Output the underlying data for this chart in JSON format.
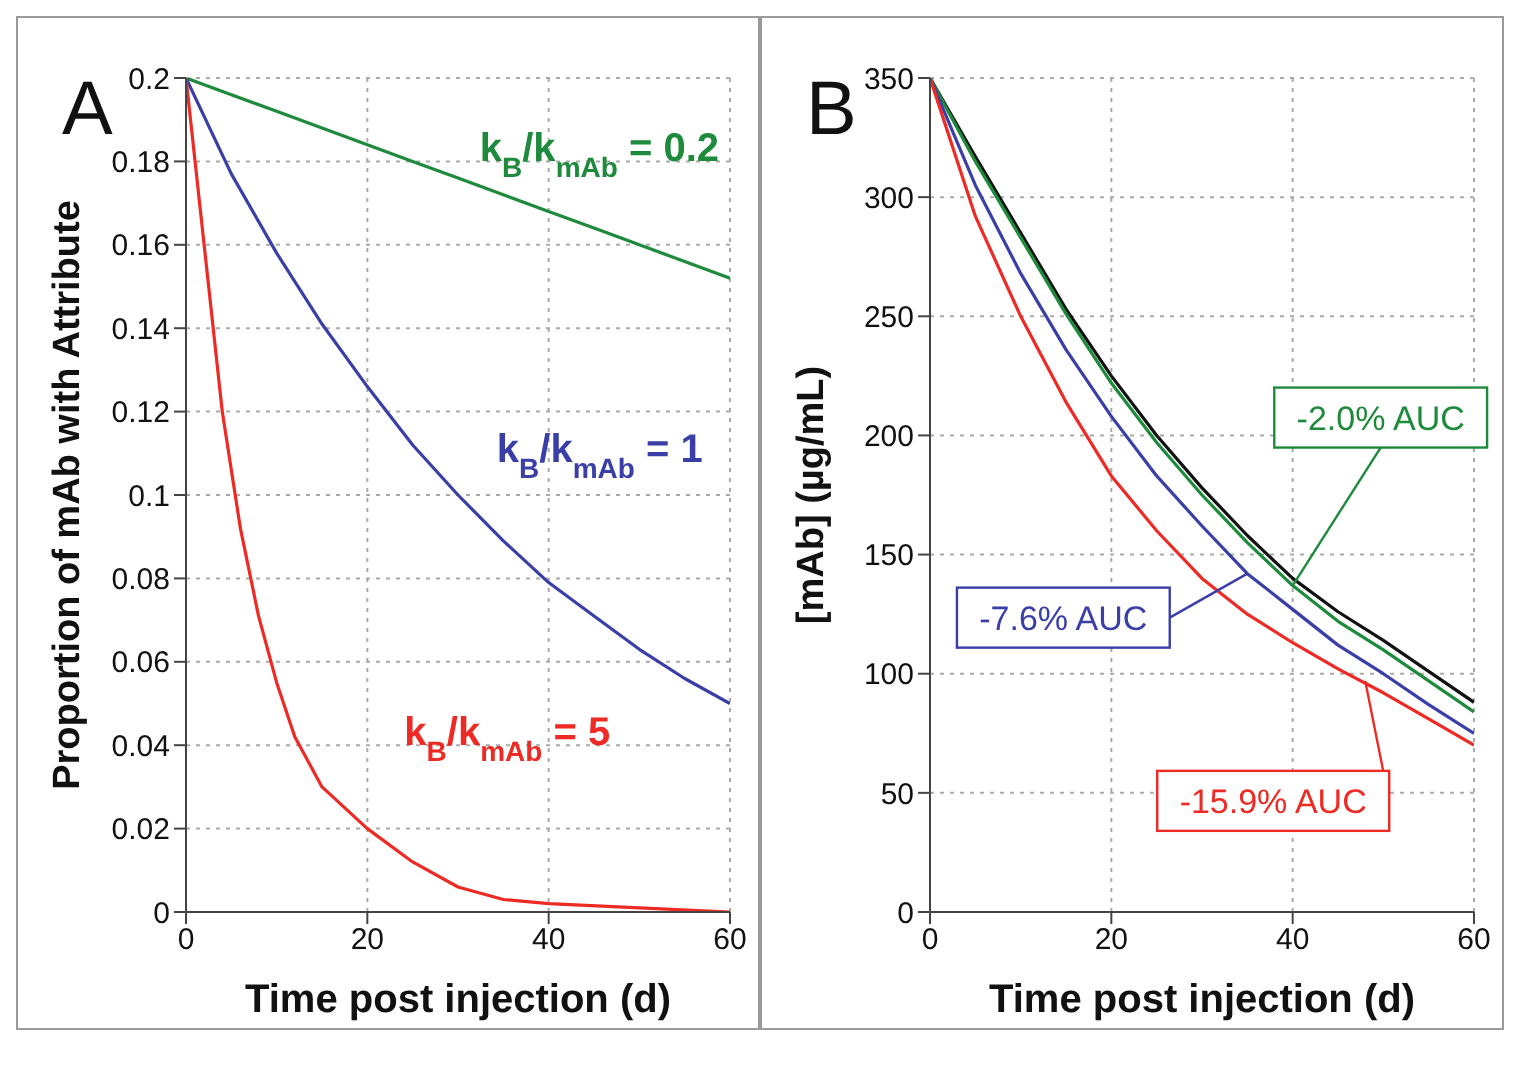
{
  "chart_data": [
    {
      "type": "line",
      "title": "A",
      "xlabel": "Time post injection (d)",
      "ylabel": "Proportion of mAb with Attribute",
      "x": [
        0,
        5,
        10,
        15,
        20,
        25,
        30,
        35,
        40,
        45,
        50,
        55,
        60
      ],
      "xlim": [
        0,
        60
      ],
      "xticks": [
        0,
        20,
        40,
        60
      ],
      "ylim": [
        0,
        0.2
      ],
      "yticks": [
        0,
        0.02,
        0.04,
        0.06,
        0.08,
        0.1,
        0.12,
        0.14,
        0.16,
        0.18,
        0.2
      ],
      "grid": true,
      "marker": "none",
      "line_style": "solid",
      "series": [
        {
          "name": "k$_{B}$/k$_{mAb}$ = 0.2",
          "color": "#1e8a3c",
          "values": [
            0.2,
            0.196,
            0.192,
            0.188,
            0.184,
            0.18,
            0.176,
            0.172,
            0.168,
            0.164,
            0.16,
            0.156,
            0.152
          ]
        },
        {
          "name": "k$_{B}$/k$_{mAb}$ = 1",
          "color": "#3a3fa8",
          "values": [
            0.2,
            0.177,
            0.158,
            0.141,
            0.126,
            0.112,
            0.1,
            0.089,
            0.079,
            0.071,
            0.063,
            0.056,
            0.05
          ]
        },
        {
          "name": "k$_{B}$/k$_{mAb}$ = 5",
          "color": "#ee2a24",
          "x": [
            0,
            2,
            4,
            6,
            8,
            10,
            12,
            15,
            20,
            25,
            30,
            35,
            40,
            50,
            60
          ],
          "values": [
            0.2,
            0.16,
            0.12,
            0.092,
            0.071,
            0.055,
            0.042,
            0.03,
            0.02,
            0.012,
            0.006,
            0.003,
            0.002,
            0.001,
            0
          ]
        }
      ]
    },
    {
      "type": "line",
      "title": "B",
      "xlabel": "Time post injection (d)",
      "ylabel": "[mAb] (µg/mL)",
      "x": [
        0,
        5,
        10,
        15,
        20,
        25,
        30,
        35,
        40,
        45,
        50,
        55,
        60
      ],
      "xlim": [
        0,
        60
      ],
      "xticks": [
        0,
        20,
        40,
        60
      ],
      "ylim": [
        0,
        350
      ],
      "yticks": [
        0,
        50,
        100,
        150,
        200,
        250,
        300,
        350
      ],
      "grid": true,
      "marker": "none",
      "line_style": "solid",
      "series": [
        {
          "color": "#111111",
          "values": [
            350,
            317,
            285,
            253,
            225,
            200,
            178,
            158,
            140,
            126,
            114,
            101,
            88
          ]
        },
        {
          "color": "#1e8a3c",
          "values": [
            350,
            315,
            283,
            251,
            222,
            197,
            175,
            155,
            137,
            122,
            110,
            97,
            84
          ]
        },
        {
          "color": "#3a3fa8",
          "values": [
            350,
            305,
            268,
            236,
            208,
            183,
            162,
            142,
            127,
            112,
            100,
            87,
            75
          ]
        },
        {
          "color": "#ee2a24",
          "values": [
            350,
            292,
            250,
            214,
            183,
            160,
            140,
            125,
            113,
            102,
            92,
            81,
            70
          ]
        }
      ],
      "annotations": [
        {
          "text": "-2.0% AUC",
          "x": 40,
          "y": 137
        },
        {
          "text": "-7.6% AUC",
          "x": 35,
          "y": 142
        },
        {
          "text": "-15.9% AUC",
          "x": 48,
          "y": 97
        }
      ]
    }
  ]
}
